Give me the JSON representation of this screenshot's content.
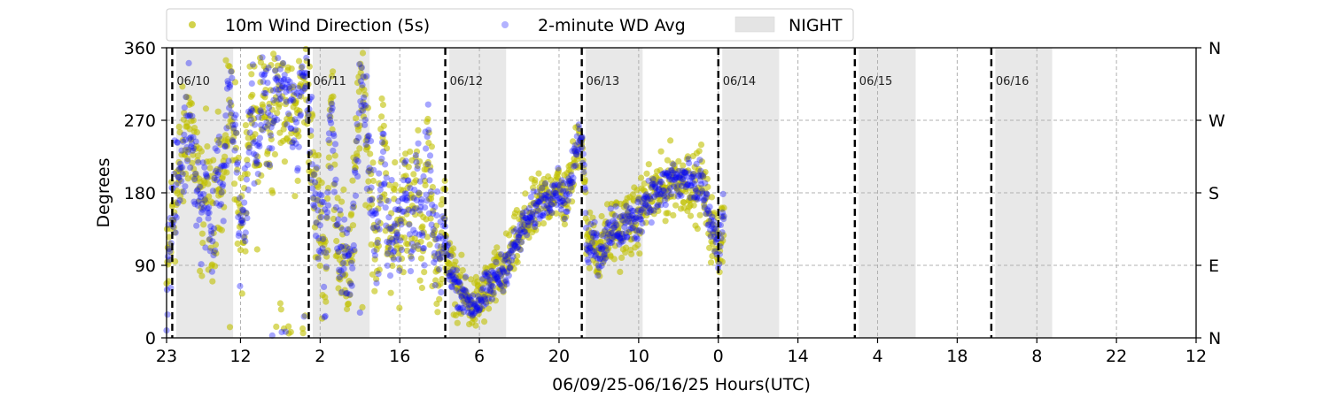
{
  "chart_data": {
    "type": "scatter",
    "xlabel": "06/09/25-06/16/25  Hours(UTC)",
    "ylabel": "Degrees",
    "ylim": [
      0,
      360
    ],
    "xlim": [
      0,
      181
    ],
    "x_unit": "hours since 06/09 23:00 UTC",
    "yticks": [
      0,
      90,
      180,
      270,
      360
    ],
    "yticks_right_labels": [
      "N",
      "E",
      "S",
      "W",
      "N"
    ],
    "xticks": [
      {
        "x": 0,
        "label": "23"
      },
      {
        "x": 13,
        "label": "12"
      },
      {
        "x": 27,
        "label": "2"
      },
      {
        "x": 41,
        "label": "16"
      },
      {
        "x": 55,
        "label": "6"
      },
      {
        "x": 69,
        "label": "20"
      },
      {
        "x": 83,
        "label": "10"
      },
      {
        "x": 97,
        "label": "0"
      },
      {
        "x": 111,
        "label": "14"
      },
      {
        "x": 125,
        "label": "4"
      },
      {
        "x": 139,
        "label": "18"
      },
      {
        "x": 153,
        "label": "8"
      },
      {
        "x": 167,
        "label": "22"
      },
      {
        "x": 181,
        "label": "12"
      }
    ],
    "grid": true,
    "legend": {
      "position": "top",
      "entries": [
        {
          "label": "10m Wind Direction (5s)",
          "color": "#bfbf00",
          "marker": "circle"
        },
        {
          "label": "2-minute WD Avg",
          "color": "#0000ff",
          "marker": "circle"
        },
        {
          "label": "NIGHT",
          "color": "#d9d9d9",
          "marker": "box"
        }
      ]
    },
    "day_boundaries": [
      {
        "x": 1,
        "label": "06/10"
      },
      {
        "x": 25,
        "label": "06/11"
      },
      {
        "x": 49,
        "label": "06/12"
      },
      {
        "x": 73,
        "label": "06/13"
      },
      {
        "x": 97,
        "label": "06/14"
      },
      {
        "x": 121,
        "label": "06/15"
      },
      {
        "x": 145,
        "label": "06/16"
      }
    ],
    "night_periods": [
      [
        1.7,
        11.7
      ],
      [
        25.7,
        35.7
      ],
      [
        49.7,
        59.7
      ],
      [
        73.7,
        83.7
      ],
      [
        97.7,
        107.7
      ],
      [
        121.7,
        131.7
      ],
      [
        145.7,
        155.7
      ]
    ],
    "series": [
      {
        "name": "10m Wind Direction (5s)",
        "color": "#bfbf00",
        "segments": [
          {
            "x": [
              0,
              1,
              2,
              3,
              4,
              5,
              6,
              7,
              8,
              9,
              10,
              11,
              12,
              13,
              14,
              15,
              16,
              17,
              18,
              19,
              20,
              21,
              22,
              23,
              24,
              25,
              26,
              27,
              28,
              29,
              30,
              31,
              32,
              33,
              34,
              35,
              36,
              37,
              38,
              39,
              40,
              41,
              42,
              43,
              44,
              45,
              46,
              47,
              48,
              49
            ],
            "y": [
              60,
              150,
              190,
              230,
              280,
              220,
              150,
              200,
              110,
              230,
              180,
              310,
              250,
              120,
              170,
              300,
              200,
              330,
              250,
              320,
              310,
              300,
              280,
              260,
              340,
              290,
              170,
              150,
              90,
              310,
              130,
              90,
              80,
              160,
              320,
              270,
              180,
              110,
              250,
              130,
              150,
              110,
              200,
              140,
              180,
              120,
              240,
              100,
              110,
              130
            ],
            "spread": 90
          },
          {
            "x": [
              49,
              50,
              51,
              52,
              53,
              54,
              55,
              56,
              57,
              58,
              59,
              60,
              61,
              62,
              63,
              64,
              65,
              66,
              67,
              68,
              69,
              70,
              71,
              72,
              73
            ],
            "y": [
              120,
              80,
              65,
              55,
              45,
              40,
              45,
              55,
              65,
              75,
              80,
              95,
              110,
              125,
              140,
              150,
              160,
              170,
              175,
              185,
              185,
              170,
              190,
              230,
              260
            ],
            "spread": 40
          },
          {
            "x": [
              73,
              74,
              75,
              76,
              77,
              78,
              79,
              80,
              81,
              82,
              83,
              84,
              85,
              86,
              87,
              88,
              89,
              90,
              91,
              92,
              93,
              94,
              95,
              96,
              97,
              98
            ],
            "y": [
              260,
              110,
              130,
              100,
              120,
              125,
              140,
              130,
              145,
              140,
              150,
              170,
              175,
              180,
              180,
              190,
              200,
              190,
              200,
              190,
              180,
              200,
              160,
              130,
              110,
              150
            ],
            "spread": 45
          }
        ]
      },
      {
        "name": "2-minute WD Avg",
        "color": "#0000ff",
        "segments": [
          {
            "x": [
              0,
              1,
              2,
              3,
              4,
              5,
              6,
              7,
              8,
              9,
              10,
              11,
              12,
              13,
              14,
              15,
              16,
              17,
              18,
              19,
              20,
              21,
              22,
              23,
              24,
              25,
              26,
              27,
              28,
              29,
              30,
              31,
              32,
              33,
              34,
              35,
              36,
              37,
              38,
              39,
              40,
              41,
              42,
              43,
              44,
              45,
              46,
              47,
              48,
              49
            ],
            "y": [
              60,
              150,
              190,
              230,
              280,
              220,
              150,
              200,
              110,
              230,
              180,
              310,
              250,
              120,
              170,
              300,
              200,
              330,
              250,
              320,
              310,
              300,
              280,
              260,
              340,
              290,
              170,
              150,
              90,
              310,
              130,
              90,
              80,
              160,
              320,
              270,
              180,
              110,
              250,
              130,
              150,
              110,
              200,
              140,
              180,
              120,
              240,
              100,
              110,
              130
            ],
            "spread": 70
          },
          {
            "x": [
              49,
              50,
              51,
              52,
              53,
              54,
              55,
              56,
              57,
              58,
              59,
              60,
              61,
              62,
              63,
              64,
              65,
              66,
              67,
              68,
              69,
              70,
              71,
              72,
              73
            ],
            "y": [
              120,
              80,
              65,
              55,
              45,
              40,
              45,
              55,
              65,
              75,
              80,
              95,
              110,
              125,
              140,
              150,
              160,
              170,
              175,
              185,
              185,
              170,
              190,
              230,
              260
            ],
            "spread": 25
          },
          {
            "x": [
              73,
              74,
              75,
              76,
              77,
              78,
              79,
              80,
              81,
              82,
              83,
              84,
              85,
              86,
              87,
              88,
              89,
              90,
              91,
              92,
              93,
              94,
              95,
              96,
              97,
              98
            ],
            "y": [
              260,
              110,
              130,
              100,
              120,
              125,
              140,
              130,
              145,
              140,
              150,
              170,
              175,
              180,
              180,
              190,
              200,
              190,
              200,
              190,
              180,
              200,
              160,
              130,
              110,
              150
            ],
            "spread": 30
          }
        ]
      }
    ]
  }
}
